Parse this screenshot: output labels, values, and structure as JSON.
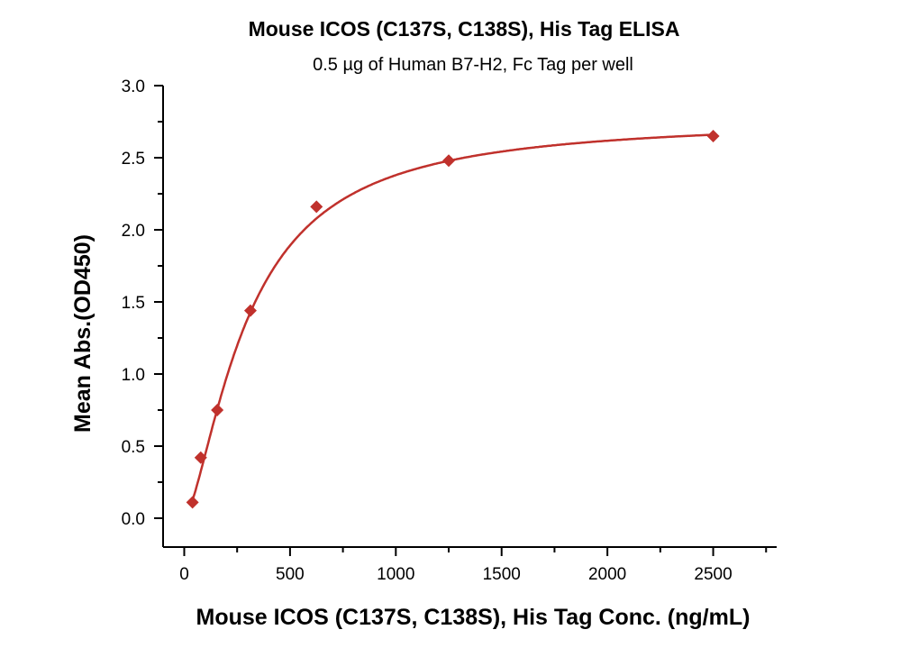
{
  "chart_data": {
    "type": "scatter",
    "title": "Mouse ICOS (C137S, C138S), His Tag ELISA",
    "subtitle": "0.5 µg of Human B7-H2, Fc Tag per well",
    "xlabel": "Mouse ICOS (C137S, C138S), His Tag Conc. (ng/mL)",
    "ylabel": "Mean Abs.(OD450)",
    "xlim": [
      -100,
      2800
    ],
    "ylim": [
      -0.2,
      3.0
    ],
    "xticks": [
      "0",
      "500",
      "1000",
      "1500",
      "2000",
      "2500"
    ],
    "yticks": [
      "0.0",
      "0.5",
      "1.0",
      "1.5",
      "2.0",
      "2.5",
      "3.0"
    ],
    "grid": false,
    "fit_line": "4-parameter logistic curve",
    "series": [
      {
        "x": [
          39,
          78,
          156,
          313,
          625,
          1250,
          2500
        ],
        "y": [
          0.11,
          0.42,
          0.75,
          1.44,
          2.16,
          2.48,
          2.65
        ],
        "marker": "diamond",
        "color": "#c0312c"
      }
    ]
  }
}
